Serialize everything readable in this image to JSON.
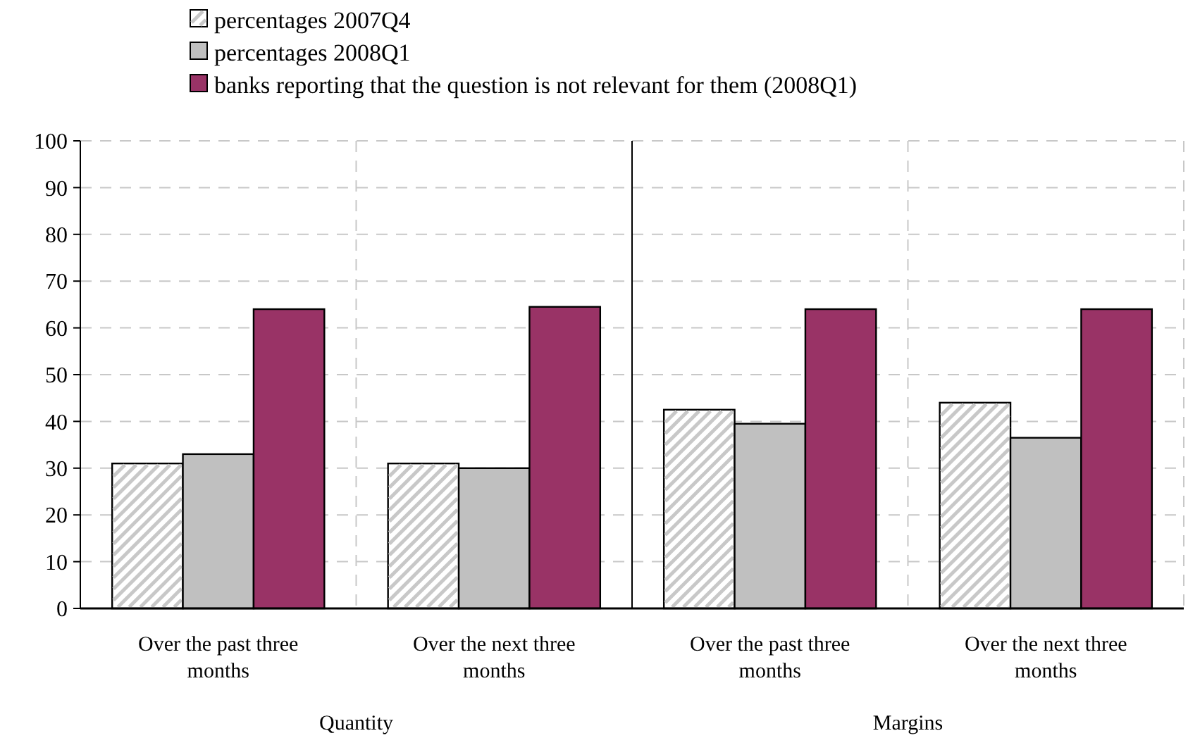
{
  "chart_data": [
    {
      "type": "bar",
      "categories": [
        "Over the past three months",
        "Over the next three months"
      ],
      "xlabel": "Quantity",
      "series": [
        {
          "name": "percentages 2007Q4",
          "color": "#ffffff",
          "values": [
            31,
            31
          ]
        },
        {
          "name": "percentages 2008Q1",
          "color": "#c0c0c0",
          "values": [
            33,
            30
          ]
        },
        {
          "name": "banks reporting that the question is not relevant for them (2008Q1)",
          "color": "#993366",
          "values": [
            64,
            64.5
          ]
        }
      ],
      "ylim": [
        0,
        100
      ],
      "yticks": [
        0,
        10,
        20,
        30,
        40,
        50,
        60,
        70,
        80,
        90,
        100
      ],
      "grid": true,
      "legend": "top right"
    },
    {
      "type": "bar",
      "categories": [
        "Over the past three months",
        "Over the next three months"
      ],
      "xlabel": "Margins",
      "series": [
        {
          "color": "#ffffff",
          "values": [
            42.5,
            44
          ]
        },
        {
          "color": "#c0c0c0",
          "values": [
            39.5,
            36.5
          ]
        },
        {
          "color": "#993366",
          "values": [
            64,
            64
          ]
        }
      ],
      "ylim": [
        0,
        100
      ],
      "yticks": [
        0,
        10,
        20,
        30,
        40,
        50,
        60,
        70,
        80,
        90,
        100
      ],
      "grid": true,
      "tick_labels": "x"
    }
  ]
}
